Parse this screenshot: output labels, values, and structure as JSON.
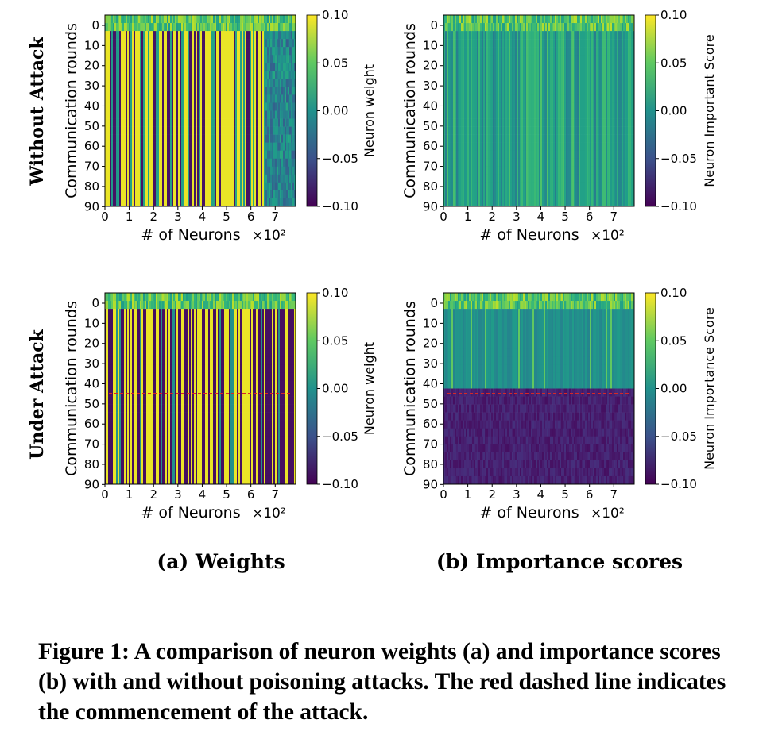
{
  "row_labels": [
    "Without Attack",
    "Under Attack"
  ],
  "subcaptions": [
    "(a) Weights",
    "(b) Importance scores"
  ],
  "caption": "Figure 1: A comparison of neuron weights (a) and importance scores (b) with and without poisoning attacks. The red dashed line indicates the commencement of the attack.",
  "chart_data": [
    {
      "type": "heatmap",
      "panel": "weights-without-attack",
      "xlabel": "# of Neurons",
      "x_multiplier": "×10²",
      "ylabel": "Communication rounds",
      "colorbar_label": "Neuron weight",
      "x_ticks": [
        "0",
        "1",
        "2",
        "3",
        "4",
        "5",
        "6",
        "7"
      ],
      "y_ticks": [
        "0",
        "10",
        "20",
        "30",
        "40",
        "50",
        "60",
        "70",
        "80",
        "90"
      ],
      "xlim": [
        0,
        7.84
      ],
      "ylim": [
        0,
        95
      ],
      "clim": [
        -0.1,
        0.1
      ],
      "colorbar_ticks": [
        "0.10",
        "0.05",
        "0.00",
        "−0.05",
        "−0.10"
      ],
      "colormap": "viridis",
      "attack_round": null,
      "grid": false
    },
    {
      "type": "heatmap",
      "panel": "importance-without-attack",
      "xlabel": "# of Neurons",
      "x_multiplier": "×10²",
      "ylabel": "Communication rounds",
      "colorbar_label": "Neuron Important Score",
      "x_ticks": [
        "0",
        "1",
        "2",
        "3",
        "4",
        "5",
        "6",
        "7"
      ],
      "y_ticks": [
        "0",
        "10",
        "20",
        "30",
        "40",
        "50",
        "60",
        "70",
        "80",
        "90"
      ],
      "xlim": [
        0,
        7.84
      ],
      "ylim": [
        0,
        95
      ],
      "clim": [
        -0.1,
        0.1
      ],
      "colorbar_ticks": [
        "0.10",
        "0.05",
        "0.00",
        "−0.05",
        "−0.10"
      ],
      "colormap": "viridis",
      "attack_round": null,
      "grid": false
    },
    {
      "type": "heatmap",
      "panel": "weights-under-attack",
      "xlabel": "# of Neurons",
      "x_multiplier": "×10²",
      "ylabel": "Communication rounds",
      "colorbar_label": "Neuron weight",
      "x_ticks": [
        "0",
        "1",
        "2",
        "3",
        "4",
        "5",
        "6",
        "7"
      ],
      "y_ticks": [
        "0",
        "10",
        "20",
        "30",
        "40",
        "50",
        "60",
        "70",
        "80",
        "90"
      ],
      "xlim": [
        0,
        7.84
      ],
      "ylim": [
        0,
        95
      ],
      "clim": [
        -0.1,
        0.1
      ],
      "colorbar_ticks": [
        "0.10",
        "0.05",
        "0.00",
        "−0.05",
        "−0.10"
      ],
      "colormap": "viridis",
      "attack_round": 50,
      "attack_line_color": "#d62728",
      "grid": false
    },
    {
      "type": "heatmap",
      "panel": "importance-under-attack",
      "xlabel": "# of Neurons",
      "x_multiplier": "×10²",
      "ylabel": "Communication rounds",
      "colorbar_label": "Neuron Importance Score",
      "x_ticks": [
        "0",
        "1",
        "2",
        "3",
        "4",
        "5",
        "6",
        "7"
      ],
      "y_ticks": [
        "0",
        "10",
        "20",
        "30",
        "40",
        "50",
        "60",
        "70",
        "80",
        "90"
      ],
      "xlim": [
        0,
        7.84
      ],
      "ylim": [
        0,
        95
      ],
      "clim": [
        -0.1,
        0.1
      ],
      "colorbar_ticks": [
        "0.10",
        "0.05",
        "0.00",
        "−0.05",
        "−0.10"
      ],
      "colormap": "viridis",
      "attack_round": 50,
      "attack_line_color": "#d62728",
      "grid": false
    }
  ]
}
